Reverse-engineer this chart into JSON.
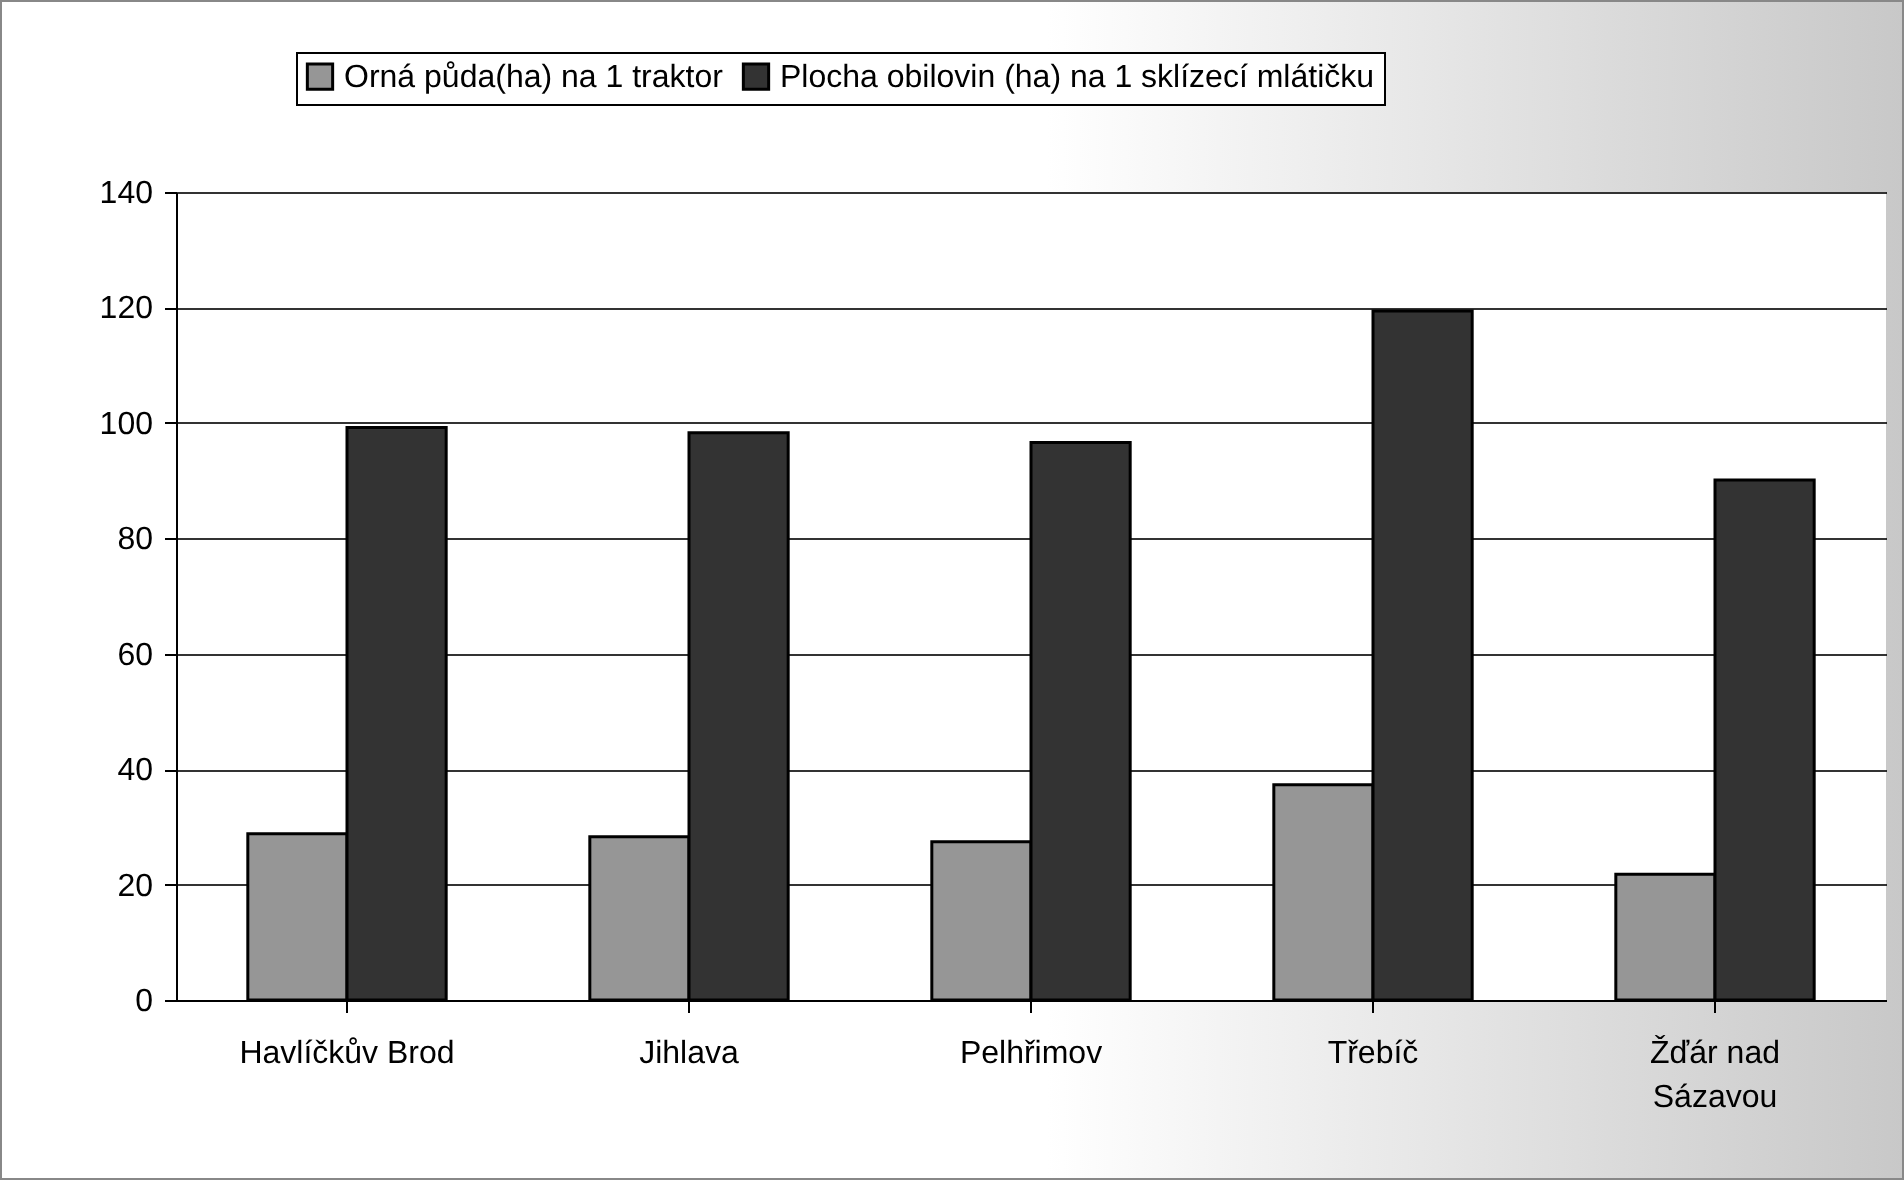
{
  "chart_data": {
    "type": "bar",
    "categories": [
      "Havlíčkův Brod",
      "Jihlava",
      "Pelhřimov",
      "Třebíč",
      "Žďár nad Sázavou"
    ],
    "series": [
      {
        "name": "Orná půda(ha) na 1 traktor",
        "color": "#969696",
        "values": [
          28.8,
          28.3,
          27.4,
          37.3,
          21.8
        ]
      },
      {
        "name": "Plocha obilovin (ha) na 1 sklízecí mlátičku",
        "color": "#333333",
        "values": [
          99.2,
          98.3,
          96.6,
          119.4,
          90.1
        ]
      }
    ],
    "ylim": [
      0,
      140
    ],
    "yticks": [
      0,
      20,
      40,
      60,
      80,
      100,
      120,
      140
    ],
    "grid": "y",
    "legend": "top"
  }
}
